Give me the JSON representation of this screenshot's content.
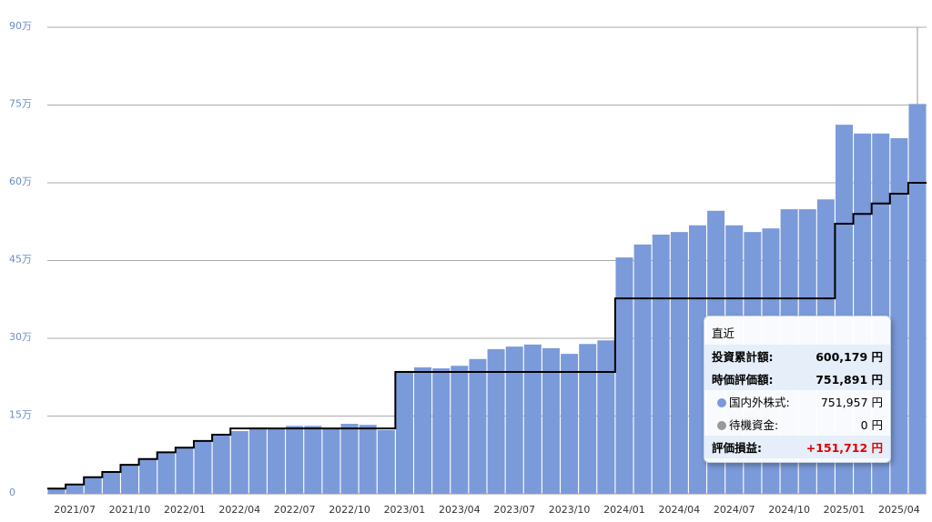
{
  "chart_data": {
    "type": "bar",
    "categories": [
      null,
      "2021/07",
      null,
      null,
      "2021/10",
      null,
      null,
      "2022/01",
      null,
      null,
      "2022/04",
      null,
      null,
      "2022/07",
      null,
      null,
      "2022/10",
      null,
      null,
      "2023/01",
      null,
      null,
      "2023/04",
      null,
      null,
      "2023/07",
      null,
      null,
      "2023/10",
      null,
      null,
      "2024/01",
      null,
      null,
      "2024/04",
      null,
      null,
      "2024/07",
      null,
      null,
      "2024/10",
      null,
      null,
      "2025/01",
      null,
      null,
      "2025/04",
      null
    ],
    "series": [
      {
        "color": "#7b9ad9",
        "values": [
          0.9,
          1.8,
          3.2,
          4.2,
          5.6,
          6.7,
          8.1,
          8.9,
          10.2,
          11.4,
          12.1,
          12.8,
          12.6,
          13.1,
          13.1,
          12.6,
          13.5,
          13.3,
          12.3,
          23.7,
          24.4,
          24.2,
          24.7,
          26.0,
          27.9,
          28.4,
          28.8,
          28.1,
          27.0,
          28.9,
          29.6,
          45.6,
          48.1,
          50.0,
          50.5,
          51.8,
          54.6,
          51.8,
          50.5,
          51.2,
          54.9,
          54.9,
          56.8,
          71.2,
          69.5,
          69.5,
          68.6,
          75.2
        ]
      },
      {
        "type": "step",
        "color": "#000000",
        "values": [
          1.0,
          1.8,
          3.2,
          4.2,
          5.6,
          6.7,
          8.0,
          8.9,
          10.2,
          11.4,
          12.6,
          12.6,
          12.6,
          12.6,
          12.6,
          12.6,
          12.6,
          12.6,
          12.6,
          23.5,
          23.5,
          23.5,
          23.5,
          23.5,
          23.5,
          23.5,
          23.5,
          23.5,
          23.5,
          23.5,
          23.5,
          37.7,
          37.7,
          37.7,
          37.7,
          37.7,
          37.7,
          37.7,
          37.7,
          37.7,
          37.7,
          37.7,
          37.7,
          52.1,
          54.0,
          56.0,
          57.9,
          60.0
        ]
      }
    ],
    "ylim": [
      0,
      90
    ],
    "yticks": [
      0,
      {
        "value": 15,
        "label": "15万"
      },
      {
        "value": 30,
        "label": "30万"
      },
      {
        "value": 45,
        "label": "45万"
      },
      {
        "value": 60,
        "label": "60万"
      },
      {
        "value": 75,
        "label": "75万"
      },
      {
        "value": 90,
        "label": "90万"
      }
    ],
    "grid": true
  },
  "tooltip": {
    "title": "直近",
    "rows": [
      {
        "label": "投資累計額:",
        "value": "600,179 円"
      },
      {
        "label": "時価評価額:",
        "value": "751,891 円"
      },
      {
        "label": "国内外株式:",
        "value": "751,957 円"
      },
      {
        "label": "待機資金:",
        "value": "0 円"
      },
      {
        "label": "評価損益:",
        "value": "+151,712 円"
      }
    ]
  }
}
